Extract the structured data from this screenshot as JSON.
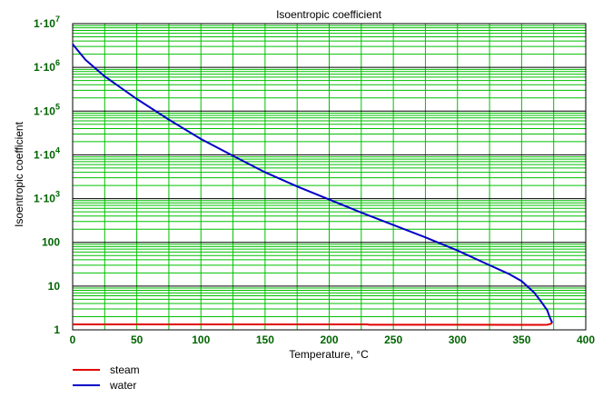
{
  "chart_data": {
    "type": "line",
    "title": "Isoentropic coefficient",
    "xlabel": "Temperature, °C",
    "ylabel": "Isoentropic coefficient",
    "xlim": [
      0,
      400
    ],
    "ylim": [
      1,
      10000000
    ],
    "yscale": "log",
    "grid": true,
    "legend": "bottom-left",
    "x_ticks": [
      "0",
      "50",
      "100",
      "150",
      "200",
      "250",
      "300",
      "350",
      "400"
    ],
    "y_ticks": [
      {
        "value": 1,
        "mantissa": "1",
        "exp": ""
      },
      {
        "value": 10,
        "mantissa": "10",
        "exp": ""
      },
      {
        "value": 100,
        "mantissa": "100",
        "exp": ""
      },
      {
        "value": 1000,
        "mantissa": "1·10",
        "exp": "3"
      },
      {
        "value": 10000,
        "mantissa": "1·10",
        "exp": "4"
      },
      {
        "value": 100000,
        "mantissa": "1·10",
        "exp": "5"
      },
      {
        "value": 1000000,
        "mantissa": "1·10",
        "exp": "6"
      },
      {
        "value": 10000000,
        "mantissa": "1·10",
        "exp": "7"
      }
    ],
    "colors": {
      "grid_major": "#000000",
      "grid_minor": "#00c000",
      "tick_label": "#006400"
    },
    "series": [
      {
        "name": "steam",
        "color": "#e00000",
        "x": [
          0,
          50,
          100,
          150,
          200,
          230,
          231,
          250,
          300,
          350,
          365,
          370,
          372,
          373.9
        ],
        "y": [
          1.33,
          1.33,
          1.33,
          1.33,
          1.33,
          1.33,
          1.31,
          1.31,
          1.31,
          1.3,
          1.3,
          1.31,
          1.35,
          1.45
        ]
      },
      {
        "name": "water",
        "color": "#0000c8",
        "x": [
          0,
          10,
          25,
          50,
          75,
          100,
          125,
          150,
          175,
          200,
          225,
          250,
          275,
          300,
          325,
          340,
          350,
          360,
          365,
          370,
          372,
          373.9
        ],
        "y": [
          3400000,
          1500000,
          620000,
          190000,
          64000,
          23000,
          9500,
          4000,
          1900,
          950,
          480,
          250,
          130,
          65,
          30,
          19,
          13,
          7,
          4.5,
          2.8,
          1.9,
          1.45
        ]
      }
    ]
  }
}
